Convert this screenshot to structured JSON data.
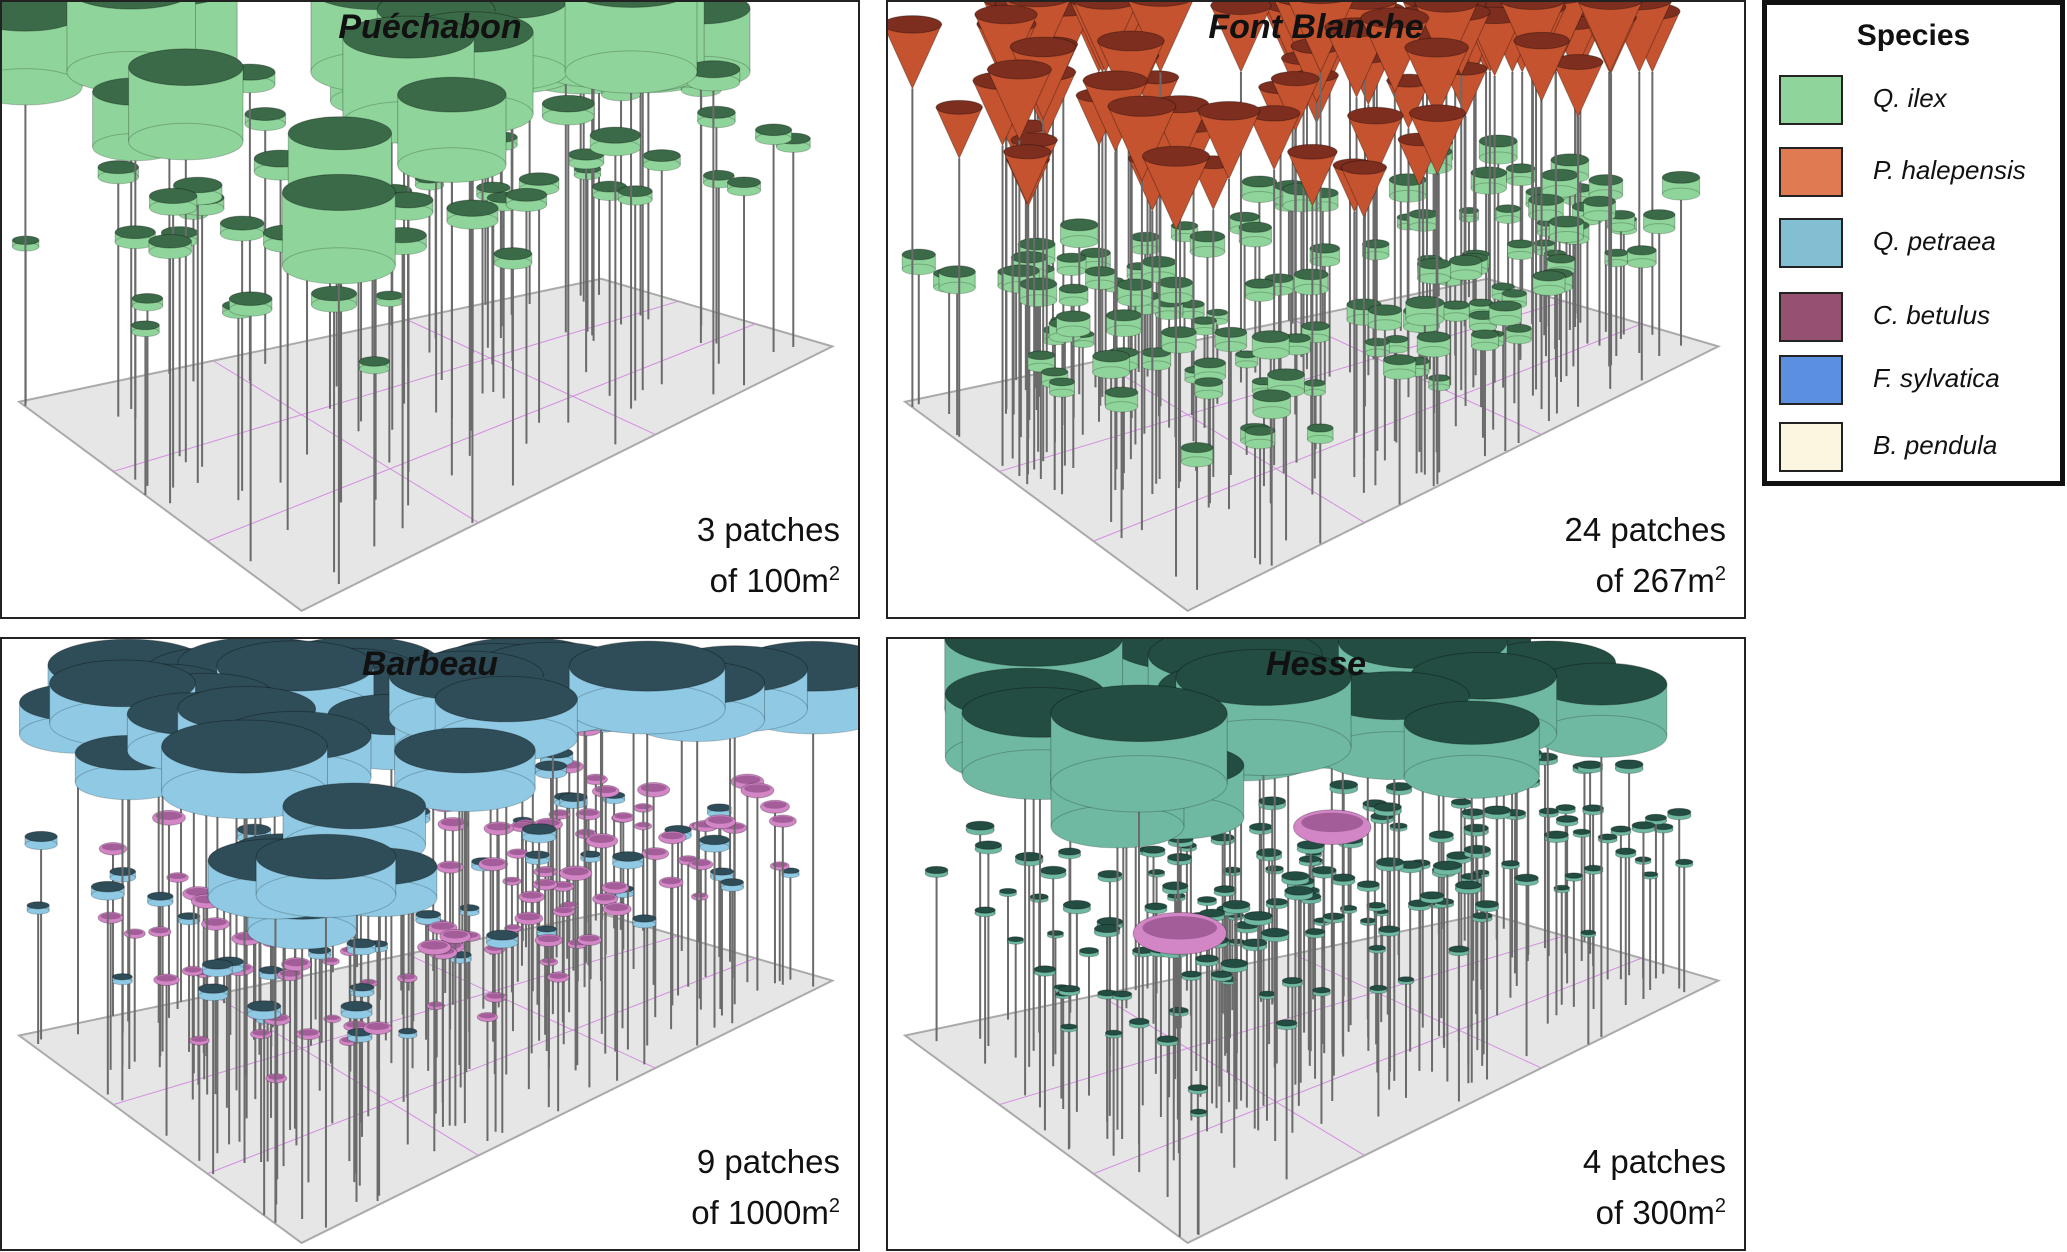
{
  "panels": [
    {
      "id": "puechabon",
      "title": "Puéchabon",
      "patches": "3 patches",
      "area_prefix": "of 100m",
      "area_sup": "2"
    },
    {
      "id": "fontblanche",
      "title": "Font Blanche",
      "patches": "24 patches",
      "area_prefix": "of 267m",
      "area_sup": "2"
    },
    {
      "id": "barbeau",
      "title": "Barbeau",
      "patches": "9 patches",
      "area_prefix": "of 1000m",
      "area_sup": "2"
    },
    {
      "id": "hesse",
      "title": "Hesse",
      "patches": "4 patches",
      "area_prefix": "of 300m",
      "area_sup": "2"
    }
  ],
  "legend": {
    "title": "Species",
    "items": [
      {
        "label": "Q. ilex",
        "color": "#8fd49a"
      },
      {
        "label": "P. halepensis",
        "color": "#e07a52"
      },
      {
        "label": "Q. petraea",
        "color": "#82bfd3"
      },
      {
        "label": "C. betulus",
        "color": "#955270"
      },
      {
        "label": "F. sylvatica",
        "color": "#5b8fe0"
      },
      {
        "label": "B. pendula",
        "color": "#fbf6df"
      }
    ]
  },
  "colors": {
    "qilex_side": "#8fd49a",
    "qilex_top": "#3b6a48",
    "phal_side": "#c5532f",
    "phal_top": "#7d2e1f",
    "qpet_side": "#8fc9e3",
    "qpet_top": "#2f4d59",
    "cbet_side": "#d286c6",
    "cbet_top": "#8e4c86",
    "fsyl_side": "#6fb8a2",
    "fsyl_top": "#234d42",
    "bpen_side": "#f1e9bf",
    "bpen_top": "#cdbd8a",
    "trunk": "#6b6b6b",
    "ground": "#e6e6e6"
  }
}
